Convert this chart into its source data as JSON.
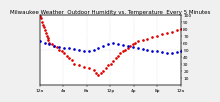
{
  "title": "Milwaukee Weather  Outdoor Humidity vs. Temperature  Every 5 Minutes",
  "bg_color": "#f0f0f0",
  "plot_bg_color": "#ffffff",
  "grid_color": "#aaaaaa",
  "red_color": "#dd0000",
  "blue_color": "#0000cc",
  "ylim": [
    0,
    100
  ],
  "xlim": [
    0,
    288
  ],
  "red_x": [
    0,
    2,
    4,
    6,
    8,
    10,
    12,
    14,
    16,
    18,
    20,
    25,
    30,
    35,
    40,
    45,
    50,
    55,
    60,
    65,
    70,
    80,
    90,
    100,
    110,
    115,
    120,
    125,
    130,
    135,
    140,
    145,
    150,
    155,
    160,
    165,
    170,
    175,
    180,
    185,
    190,
    195,
    200,
    210,
    220,
    230,
    240,
    250,
    260,
    270,
    280,
    288
  ],
  "red_y": [
    98,
    95,
    90,
    85,
    82,
    78,
    74,
    70,
    67,
    64,
    60,
    58,
    56,
    54,
    50,
    48,
    45,
    42,
    38,
    35,
    30,
    28,
    26,
    24,
    22,
    18,
    15,
    18,
    20,
    24,
    28,
    30,
    34,
    38,
    42,
    45,
    48,
    50,
    52,
    56,
    58,
    60,
    62,
    64,
    66,
    68,
    70,
    72,
    74,
    76,
    78,
    80
  ],
  "blue_x": [
    0,
    10,
    20,
    30,
    40,
    50,
    60,
    70,
    80,
    90,
    100,
    110,
    120,
    130,
    140,
    150,
    160,
    170,
    180,
    190,
    200,
    210,
    220,
    230,
    240,
    250,
    260,
    270,
    280,
    288
  ],
  "blue_y": [
    62,
    60,
    58,
    56,
    54,
    53,
    52,
    51,
    50,
    49,
    48,
    50,
    53,
    56,
    58,
    60,
    59,
    57,
    55,
    54,
    52,
    51,
    50,
    49,
    48,
    47,
    46,
    46,
    47,
    48
  ],
  "ytick_right": [
    10,
    20,
    30,
    40,
    50,
    60,
    70,
    80,
    90,
    100
  ],
  "xtick_positions": [
    0,
    48,
    96,
    144,
    192,
    240,
    288
  ],
  "xtick_labels": [
    "12a",
    "4a",
    "8a",
    "12p",
    "4p",
    "8p",
    "12a"
  ],
  "title_fontsize": 4.0,
  "tick_fontsize": 3.2,
  "marker_size": 1.8,
  "linewidth": 0.0
}
